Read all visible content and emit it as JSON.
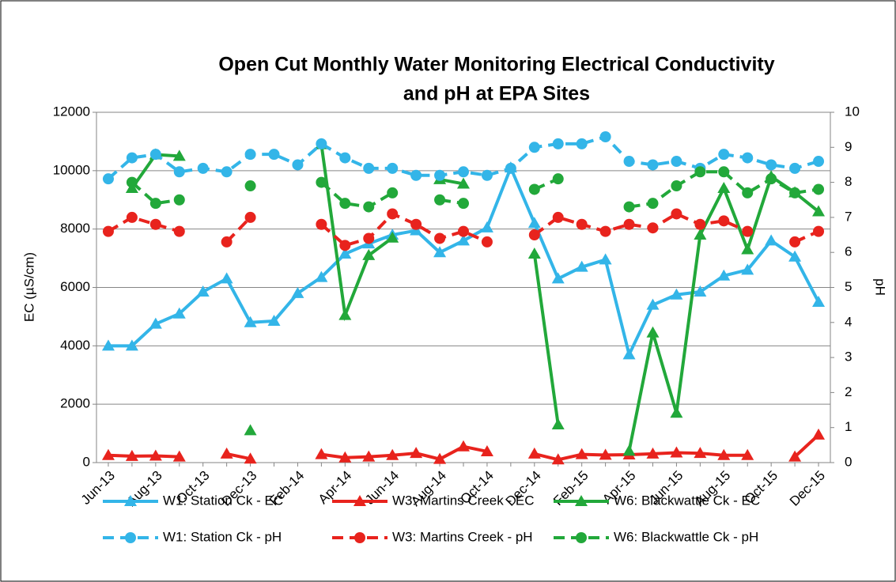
{
  "chart_data": {
    "type": "line",
    "title": [
      "Open Cut Monthly Water Monitoring Electrical Conductivity",
      "and pH at EPA Sites"
    ],
    "y_label": "EC (µS/cm)",
    "y2_label": "pH",
    "categories": [
      "Jun-13",
      null,
      "Aug-13",
      null,
      "Oct-13",
      null,
      "Dec-13",
      null,
      "Feb-14",
      null,
      "Apr-14",
      null,
      "Jun-14",
      null,
      "Aug-14",
      null,
      "Oct-14",
      null,
      "Dec-14",
      null,
      "Feb-15",
      null,
      "Apr-15",
      null,
      "Jun-15",
      null,
      "Aug-15",
      null,
      "Oct-15",
      null,
      "Dec-15"
    ],
    "ylim": [
      0,
      12000
    ],
    "yticks": [
      0,
      2000,
      4000,
      6000,
      8000,
      10000,
      12000
    ],
    "y2lim": [
      0,
      10
    ],
    "y2ticks": [
      0,
      1,
      2,
      3,
      4,
      5,
      6,
      7,
      8,
      9,
      10
    ],
    "grid": true,
    "series": [
      {
        "name": "W1: Station Ck - EC",
        "color": "#33b5e8",
        "marker": "triangle",
        "line_style": "solid",
        "values": [
          4000,
          4000,
          4750,
          5100,
          5850,
          6300,
          4800,
          4850,
          5800,
          6350,
          7150,
          7500,
          7800,
          7950,
          7200,
          7600,
          8050,
          10100,
          8200,
          6300,
          6700,
          6950,
          3700,
          5400,
          5750,
          5850,
          6400,
          6600,
          7600,
          7050,
          5500
        ]
      },
      {
        "name": "W3: Martins Creek - EC",
        "color": "#e8231d",
        "marker": "triangle",
        "line_style": "solid",
        "values": [
          250,
          220,
          230,
          200,
          null,
          300,
          130,
          null,
          null,
          280,
          170,
          200,
          250,
          320,
          120,
          550,
          380,
          null,
          300,
          100,
          280,
          260,
          270,
          300,
          340,
          320,
          250,
          250,
          null,
          200,
          950
        ]
      },
      {
        "name": "W6: Blackwattle Ck - EC",
        "color": "#22a83a",
        "marker": "triangle",
        "line_style": "solid",
        "values": [
          null,
          9400,
          10550,
          10500,
          null,
          null,
          1100,
          null,
          null,
          10900,
          5050,
          7100,
          7700,
          null,
          9700,
          9550,
          null,
          null,
          7150,
          1300,
          null,
          null,
          400,
          4450,
          1700,
          7800,
          9400,
          7300,
          9800,
          9250,
          8600
        ]
      },
      {
        "name": "W1: Station Ck - pH",
        "color": "#33b5e8",
        "marker": "circle",
        "line_style": "dashed",
        "axis": "y2",
        "values": [
          8.1,
          8.7,
          8.8,
          8.3,
          8.4,
          8.3,
          8.8,
          8.8,
          8.5,
          9.1,
          8.7,
          8.4,
          8.4,
          8.2,
          8.2,
          8.3,
          8.2,
          8.4,
          9.0,
          9.1,
          9.1,
          9.3,
          8.6,
          8.5,
          8.6,
          8.4,
          8.8,
          8.7,
          8.5,
          8.4,
          8.6
        ]
      },
      {
        "name": "W3: Martins Creek - pH",
        "color": "#e8231d",
        "marker": "circle",
        "line_style": "dashed",
        "axis": "y2",
        "values": [
          6.6,
          7.0,
          6.8,
          6.6,
          null,
          6.3,
          7.0,
          null,
          null,
          6.8,
          6.2,
          6.4,
          7.1,
          6.8,
          6.4,
          6.6,
          6.3,
          null,
          6.5,
          7.0,
          6.8,
          6.6,
          6.8,
          6.7,
          7.1,
          6.8,
          6.9,
          6.6,
          null,
          6.3,
          6.6
        ]
      },
      {
        "name": "W6: Blackwattle Ck - pH",
        "color": "#22a83a",
        "marker": "circle",
        "line_style": "dashed",
        "axis": "y2",
        "values": [
          null,
          8.0,
          7.4,
          7.5,
          null,
          null,
          7.9,
          null,
          null,
          8.0,
          7.4,
          7.3,
          7.7,
          null,
          7.5,
          7.4,
          null,
          null,
          7.8,
          8.1,
          null,
          null,
          7.3,
          7.4,
          7.9,
          8.3,
          8.3,
          7.7,
          8.1,
          7.7,
          7.8
        ]
      }
    ]
  }
}
